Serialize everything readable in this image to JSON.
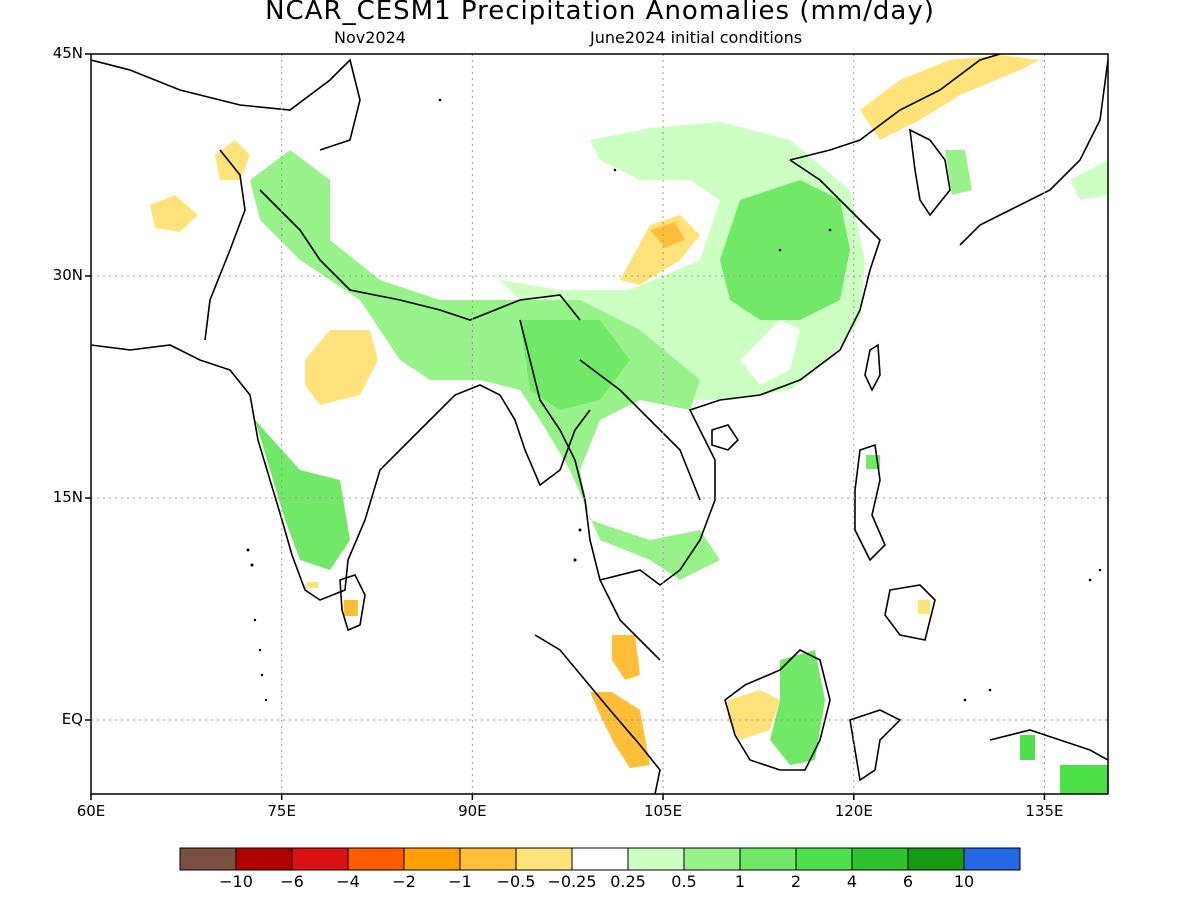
{
  "title": "NCAR_CESM1 Precipitation Anomalies (mm/day)",
  "subtitle_left": "Nov2024",
  "subtitle_right": "June2024 initial conditions",
  "map": {
    "lon_range": [
      60,
      140
    ],
    "lat_range": [
      -5,
      45
    ],
    "y_ticks": [
      {
        "lat": 45,
        "label": "45N"
      },
      {
        "lat": 30,
        "label": "30N"
      },
      {
        "lat": 15,
        "label": "15N"
      },
      {
        "lat": 0,
        "label": "EQ"
      }
    ],
    "x_ticks": [
      {
        "lon": 60,
        "label": "60E"
      },
      {
        "lon": 75,
        "label": "75E"
      },
      {
        "lon": 90,
        "label": "90E"
      },
      {
        "lon": 105,
        "label": "105E"
      },
      {
        "lon": 120,
        "label": "120E"
      },
      {
        "lon": 135,
        "label": "135E"
      }
    ],
    "grid": "dotted"
  },
  "colorbar": {
    "colors": [
      "#7a5043",
      "#b00000",
      "#dd1111",
      "#ff5a00",
      "#ffa000",
      "#ffbe38",
      "#ffe27a",
      "#ffffff",
      "#ccffc2",
      "#97f28a",
      "#72e868",
      "#4ee04a",
      "#2fc42f",
      "#149c14",
      "#2468e6"
    ],
    "labels": [
      "−10",
      "−6",
      "−4",
      "−2",
      "−1",
      "−0.5",
      "−0.25",
      "0.25",
      "0.5",
      "1",
      "2",
      "4",
      "6",
      "10"
    ]
  },
  "anomaly_regions": [
    {
      "name": "himalaya-north-india-wet",
      "color": "#97f28a"
    },
    {
      "name": "southeast-asia-wet",
      "color": "#97f28a"
    },
    {
      "name": "central-china-wet",
      "color": "#72e868"
    },
    {
      "name": "west-india-wet",
      "color": "#72e868"
    },
    {
      "name": "central-india-dry",
      "color": "#ffe27a"
    },
    {
      "name": "tibet-dry",
      "color": "#ffbe38"
    },
    {
      "name": "northeast-china-dry",
      "color": "#ffe27a"
    },
    {
      "name": "malaya-sumatra-dry",
      "color": "#ffbe38"
    },
    {
      "name": "borneo-dry",
      "color": "#ffe27a"
    },
    {
      "name": "borneo-wet",
      "color": "#72e868"
    }
  ]
}
